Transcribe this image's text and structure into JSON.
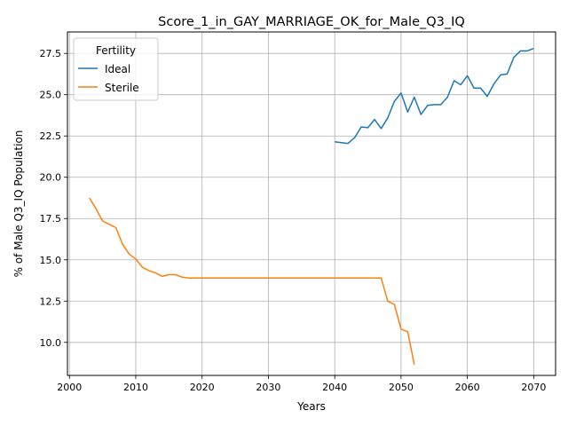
{
  "chart_data": {
    "type": "line",
    "title": "Score_1_in_GAY_MARRIAGE_OK_for_Male_Q3_IQ",
    "xlabel": "Years",
    "ylabel": "% of Male Q3_IQ Population",
    "xlim": [
      1999.7,
      2073.3
    ],
    "ylim": [
      8.0,
      28.8
    ],
    "xticks": [
      2000,
      2010,
      2020,
      2030,
      2040,
      2050,
      2060,
      2070
    ],
    "xtick_labels": [
      "2000",
      "2010",
      "2020",
      "2030",
      "2040",
      "2050",
      "2060",
      "2070"
    ],
    "yticks": [
      10.0,
      12.5,
      15.0,
      17.5,
      20.0,
      22.5,
      25.0,
      27.5
    ],
    "ytick_labels": [
      "10.0",
      "12.5",
      "15.0",
      "17.5",
      "20.0",
      "22.5",
      "25.0",
      "27.5"
    ],
    "grid": true,
    "legend": {
      "title": "Fertility",
      "placement": "top-left"
    },
    "series": [
      {
        "name": "Ideal",
        "color": "#1f77b4",
        "x": [
          2040,
          2041,
          2042,
          2043,
          2044,
          2045,
          2046,
          2047,
          2048,
          2049,
          2050,
          2051,
          2052,
          2053,
          2054,
          2055,
          2056,
          2057,
          2058,
          2059,
          2060,
          2061,
          2062,
          2063,
          2064,
          2065,
          2066,
          2067,
          2068,
          2069,
          2070
        ],
        "y": [
          22.15,
          22.1,
          22.05,
          22.4,
          23.05,
          23.0,
          23.5,
          22.95,
          23.6,
          24.6,
          25.1,
          23.95,
          24.85,
          23.8,
          24.35,
          24.4,
          24.4,
          24.85,
          25.85,
          25.6,
          26.15,
          25.4,
          25.4,
          24.9,
          25.65,
          26.2,
          26.25,
          27.25,
          27.65,
          27.65,
          27.8
        ]
      },
      {
        "name": "Sterile",
        "color": "#ff7f0e",
        "x": [
          2003,
          2004,
          2005,
          2006,
          2007,
          2008,
          2009,
          2010,
          2011,
          2012,
          2013,
          2014,
          2015,
          2016,
          2017,
          2018,
          2019,
          2020,
          2025,
          2030,
          2035,
          2040,
          2045,
          2046,
          2047,
          2048,
          2049,
          2050,
          2051,
          2052
        ],
        "y": [
          18.75,
          18.1,
          17.35,
          17.15,
          16.95,
          15.95,
          15.35,
          15.05,
          14.55,
          14.35,
          14.2,
          14.0,
          14.1,
          14.1,
          13.95,
          13.9,
          13.9,
          13.9,
          13.9,
          13.9,
          13.9,
          13.9,
          13.9,
          13.9,
          13.9,
          12.5,
          12.3,
          10.8,
          10.65,
          8.65
        ]
      }
    ]
  }
}
